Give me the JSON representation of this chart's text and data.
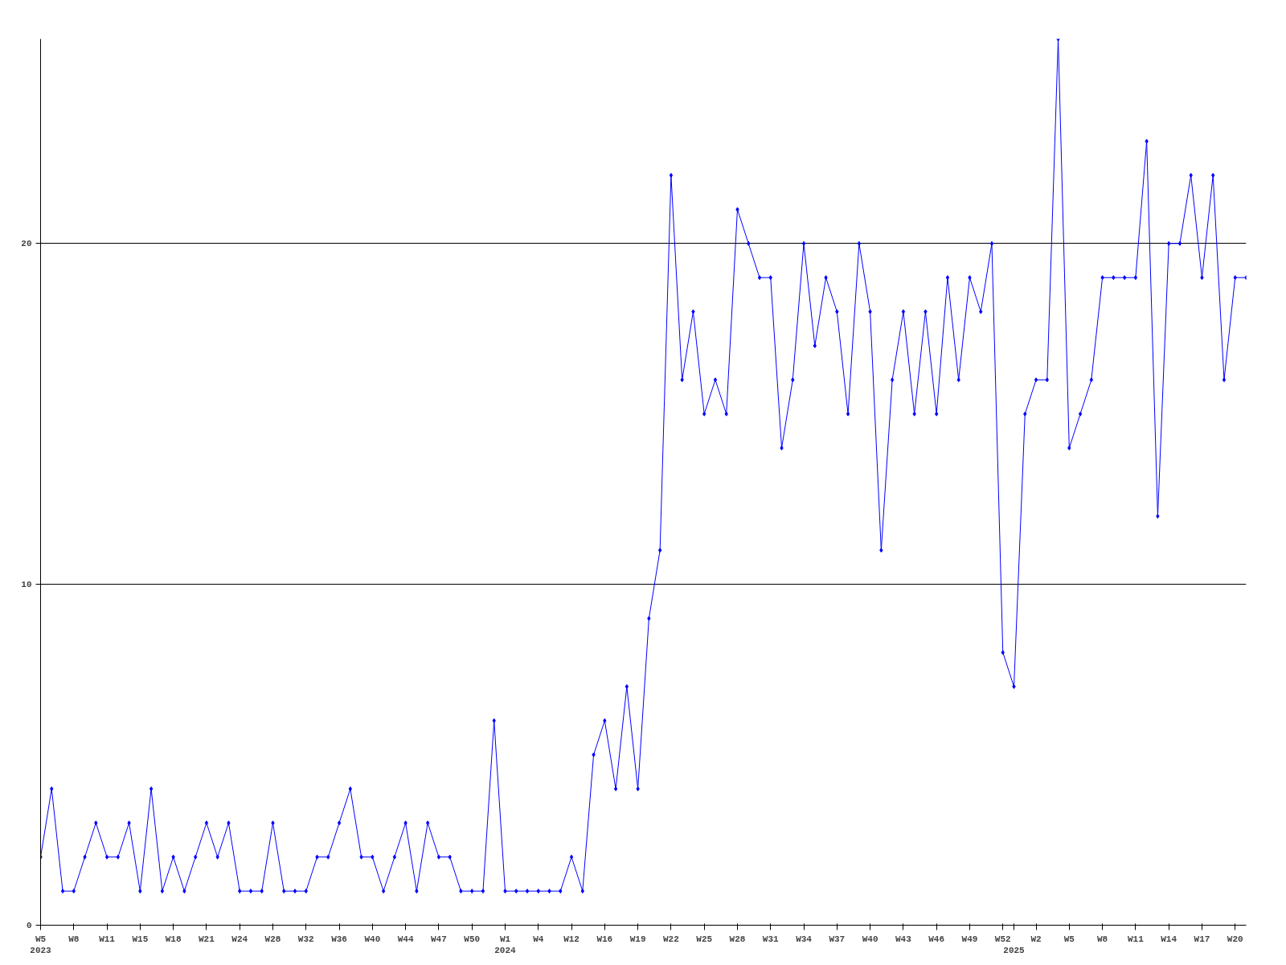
{
  "chart_data": {
    "type": "line",
    "categories": [
      "W5\n2023",
      null,
      null,
      "W8",
      null,
      null,
      "W11",
      null,
      null,
      "W15",
      null,
      null,
      "W18",
      null,
      null,
      "W21",
      null,
      null,
      "W24",
      null,
      null,
      "W28",
      null,
      null,
      "W32",
      null,
      null,
      "W36",
      null,
      null,
      "W40",
      null,
      null,
      "W44",
      null,
      null,
      "W47",
      null,
      null,
      "W50",
      null,
      null,
      "W1\n2024",
      null,
      null,
      "W4",
      null,
      null,
      "W12",
      null,
      null,
      "W16",
      null,
      null,
      "W19",
      null,
      null,
      "W22",
      null,
      null,
      "W25",
      null,
      null,
      "W28",
      null,
      null,
      "W31",
      null,
      null,
      "W34",
      null,
      null,
      "W37",
      null,
      null,
      "W40",
      null,
      null,
      "W43",
      null,
      null,
      "W46",
      null,
      null,
      "W49",
      null,
      null,
      "W52",
      "\n2025",
      null,
      "W2",
      null,
      null,
      "W5",
      null,
      null,
      "W8",
      null,
      null,
      "W11",
      null,
      null,
      "W14",
      null,
      null,
      "W17",
      null,
      null,
      "W20",
      null
    ],
    "series": [
      {
        "color": "#0000ff",
        "values": [
          2,
          4,
          1,
          1,
          2,
          3,
          2,
          2,
          3,
          1,
          4,
          1,
          2,
          1,
          2,
          3,
          2,
          3,
          1,
          1,
          1,
          3,
          1,
          1,
          1,
          2,
          2,
          3,
          4,
          2,
          2,
          1,
          2,
          3,
          1,
          3,
          2,
          2,
          1,
          1,
          1,
          6,
          1,
          1,
          1,
          1,
          1,
          1,
          2,
          1,
          5,
          6,
          4,
          7,
          4,
          9,
          11,
          22,
          16,
          18,
          15,
          16,
          15,
          21,
          20,
          19,
          19,
          14,
          16,
          20,
          17,
          19,
          18,
          15,
          20,
          18,
          11,
          16,
          18,
          15,
          18,
          15,
          19,
          16,
          19,
          18,
          20,
          8,
          7,
          15,
          16,
          16,
          26,
          14,
          15,
          16,
          19,
          19,
          19,
          19,
          23,
          12,
          20,
          20,
          22,
          19,
          22,
          16,
          19,
          19
        ]
      }
    ],
    "ylim": [
      0,
      26
    ],
    "yticks": [
      0,
      10,
      20
    ],
    "grid": "y",
    "marker": "diamond",
    "line_style": "solid"
  }
}
